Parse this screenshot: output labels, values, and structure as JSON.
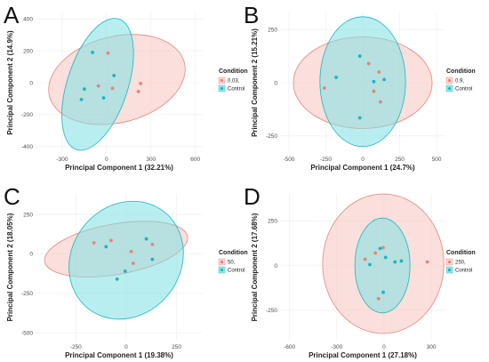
{
  "colors": {
    "treated": "#e8837a",
    "treated_fill": "#f7c9c4",
    "control": "#19b6bf",
    "control_fill": "#7fe0e4",
    "ellipse_stroke_treated": "#e8837a",
    "ellipse_stroke_control": "#19b6bf"
  },
  "chart_data": [
    {
      "panel": "A",
      "type": "scatter",
      "xlabel": "Principal Component 1 (32.21%)",
      "ylabel": "Principal Component 2 (14.9%)",
      "xlim": [
        -480,
        650
      ],
      "ylim": [
        -440,
        440
      ],
      "xticks": [
        -300,
        0,
        300,
        600
      ],
      "yticks": [
        -400,
        -200,
        0,
        200,
        400
      ],
      "legend": {
        "title": "Condition",
        "placement": "right"
      },
      "series": [
        {
          "name": "0.03,",
          "role": "treated",
          "x": [
            10,
            40,
            -55,
            230,
            215
          ],
          "y": [
            185,
            -35,
            -20,
            -5,
            -55
          ]
        },
        {
          "name": "Control",
          "role": "control",
          "x": [
            -95,
            50,
            -150,
            -170,
            -20
          ],
          "y": [
            190,
            45,
            -40,
            -105,
            -95
          ]
        }
      ],
      "ellipses": [
        {
          "role": "treated",
          "cx": 70,
          "cy": 20,
          "rx": 470,
          "ry": 270,
          "angle_deg": -14
        },
        {
          "role": "control",
          "cx": -60,
          "cy": -10,
          "rx": 205,
          "ry": 430,
          "angle_deg": 18
        }
      ]
    },
    {
      "panel": "B",
      "type": "scatter",
      "xlabel": "Principal Component 1 (24.7%)",
      "ylabel": "Principal Component 2 (15.21%)",
      "xlim": [
        -560,
        560
      ],
      "ylim": [
        -330,
        330
      ],
      "xticks": [
        -500,
        -250,
        0,
        250,
        500
      ],
      "yticks": [
        -250,
        0,
        250
      ],
      "legend": {
        "title": "Condition",
        "placement": "right"
      },
      "series": [
        {
          "name": "0.9,",
          "role": "treated",
          "x": [
            40,
            -260,
            110,
            75,
            120
          ],
          "y": [
            90,
            -25,
            50,
            -40,
            -90
          ]
        },
        {
          "name": "Control",
          "role": "control",
          "x": [
            -20,
            -180,
            145,
            75,
            -20
          ],
          "y": [
            125,
            25,
            15,
            5,
            -165
          ]
        }
      ],
      "ellipses": [
        {
          "role": "treated",
          "cx": 0,
          "cy": 0,
          "rx": 470,
          "ry": 215,
          "angle_deg": 0
        },
        {
          "role": "control",
          "cx": 0,
          "cy": 5,
          "rx": 290,
          "ry": 305,
          "angle_deg": 0
        }
      ]
    },
    {
      "panel": "C",
      "type": "scatter",
      "xlabel": "Principal Component 1 (19.38%)",
      "ylabel": "Principal Component 2 (18.05%)",
      "xlim": [
        -450,
        380
      ],
      "ylim": [
        -550,
        380
      ],
      "xticks": [
        -250,
        0,
        250
      ],
      "yticks": [
        -500,
        -250,
        0,
        250
      ],
      "legend": {
        "title": "Condition",
        "placement": "right"
      },
      "series": [
        {
          "name": "50,",
          "role": "treated",
          "x": [
            -160,
            -75,
            25,
            130,
            35
          ],
          "y": [
            70,
            85,
            15,
            60,
            -60
          ]
        },
        {
          "name": "Control",
          "role": "control",
          "x": [
            -100,
            100,
            130,
            -5,
            -45
          ],
          "y": [
            45,
            95,
            -35,
            -110,
            -160
          ]
        }
      ],
      "ellipses": [
        {
          "role": "treated",
          "cx": -50,
          "cy": 30,
          "rx": 360,
          "ry": 160,
          "angle_deg": -10
        },
        {
          "role": "control",
          "cx": 0,
          "cy": -40,
          "rx": 270,
          "ry": 390,
          "angle_deg": 38
        }
      ]
    },
    {
      "panel": "D",
      "type": "scatter",
      "xlabel": "Principal Component 1 (27.18%)",
      "ylabel": "Principal Component 2 (17.68%)",
      "xlim": [
        -660,
        390
      ],
      "ylim": [
        -420,
        400
      ],
      "xticks": [
        -600,
        -300,
        0,
        300
      ],
      "yticks": [
        -250,
        0,
        250
      ],
      "legend": {
        "title": "Condition",
        "placement": "right"
      },
      "series": [
        {
          "name": "250,",
          "role": "treated",
          "x": [
            -55,
            -120,
            -5,
            275,
            -35
          ],
          "y": [
            70,
            35,
            100,
            20,
            -185
          ]
        },
        {
          "name": "Control",
          "role": "control",
          "x": [
            -25,
            -90,
            10,
            70,
            110
          ],
          "y": [
            95,
            5,
            45,
            20,
            25
          ]
        },
        {
          "name": "Control",
          "role": "control",
          "hidden_legend": true,
          "x": [
            -5
          ],
          "y": [
            -150
          ]
        }
      ],
      "ellipses": [
        {
          "role": "treated",
          "cx": -5,
          "cy": 10,
          "rx": 385,
          "ry": 390,
          "angle_deg": 0
        },
        {
          "role": "control",
          "cx": -10,
          "cy": 0,
          "rx": 175,
          "ry": 265,
          "angle_deg": 0
        }
      ]
    }
  ]
}
